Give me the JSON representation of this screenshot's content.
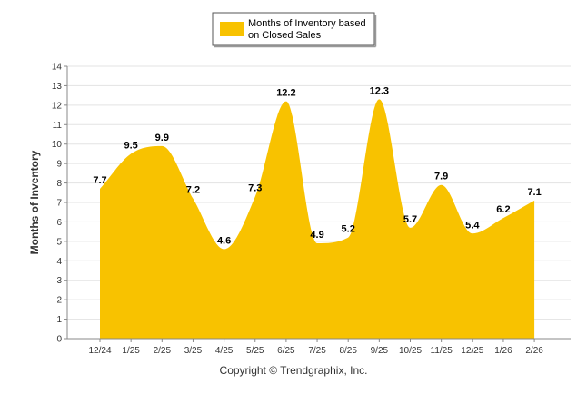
{
  "chart_data": {
    "type": "area",
    "title": "",
    "xlabel": "",
    "ylabel": "Months of Inventory",
    "ylim": [
      0,
      14
    ],
    "yticks": [
      0,
      1,
      2,
      3,
      4,
      5,
      6,
      7,
      8,
      9,
      10,
      11,
      12,
      13,
      14
    ],
    "grid": true,
    "legend_position": "top-center",
    "categories": [
      "12/24",
      "1/25",
      "2/25",
      "3/25",
      "4/25",
      "5/25",
      "6/25",
      "7/25",
      "8/25",
      "9/25",
      "10/25",
      "11/25",
      "12/25",
      "1/26",
      "2/26"
    ],
    "series": [
      {
        "name": "Months of Inventory based on Closed Sales",
        "legend_lines": [
          "Months of Inventory based",
          "on Closed Sales"
        ],
        "values": [
          7.7,
          9.5,
          9.9,
          7.2,
          4.6,
          7.3,
          12.2,
          4.9,
          5.2,
          12.3,
          5.7,
          7.9,
          5.4,
          6.2,
          7.1
        ],
        "labels": [
          "7.7",
          "9.5",
          "9.9",
          "7.2",
          "4.6",
          "7.3",
          "12.2",
          "4.9",
          "5.2",
          "12.3",
          "5.7",
          "7.9",
          "5.4",
          "6.2",
          "7.1"
        ],
        "color": "#f8c200"
      }
    ]
  },
  "footer": {
    "copyright": "Copyright © Trendgraphix, Inc."
  }
}
